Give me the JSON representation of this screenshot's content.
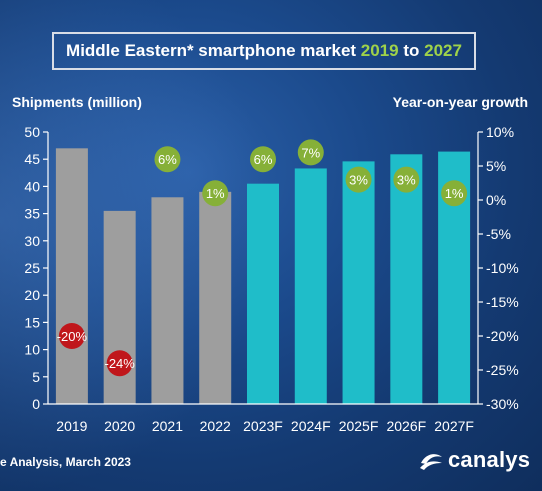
{
  "title": {
    "prefix": "Middle Eastern* smartphone market ",
    "year_start": "2019",
    "connector": " to ",
    "year_end": "2027"
  },
  "colors": {
    "actual_bar": "#9e9e9e",
    "forecast_bar": "#1fbdc9",
    "positive_growth": "#86b038",
    "negative_growth": "#c0161b",
    "title_highlight": "#9fd24a"
  },
  "chart_data": {
    "type": "bar",
    "categories": [
      "2019",
      "2020",
      "2021",
      "2022",
      "2023F",
      "2024F",
      "2025F",
      "2026F",
      "2027F"
    ],
    "series": [
      {
        "values": [
          47,
          35.5,
          38,
          39,
          40.5,
          43.3,
          44.6,
          45.9,
          46.4
        ],
        "forecast_from_index": 4
      },
      {
        "axis": "right",
        "values": [
          -20,
          -24,
          6,
          1,
          6,
          7,
          3,
          3,
          1
        ],
        "labels": [
          "-20%",
          "-24%",
          "6%",
          "1%",
          "6%",
          "7%",
          "3%",
          "3%",
          "1%"
        ]
      }
    ],
    "ylabel": "Shipments (million)",
    "y2label": "Year-on-year growth",
    "ylim": [
      0,
      50
    ],
    "y2lim": [
      -30,
      10
    ],
    "yticks": [
      "0",
      "5",
      "10",
      "15",
      "20",
      "25",
      "30",
      "35",
      "40",
      "45",
      "50"
    ],
    "y2ticks": [
      "-30%",
      "-25%",
      "-20%",
      "-15%",
      "-10%",
      "-5%",
      "0%",
      "5%",
      "10%"
    ],
    "grid": false
  },
  "footer": {
    "source": "e Analysis, March 2023",
    "brand": "canalys"
  }
}
